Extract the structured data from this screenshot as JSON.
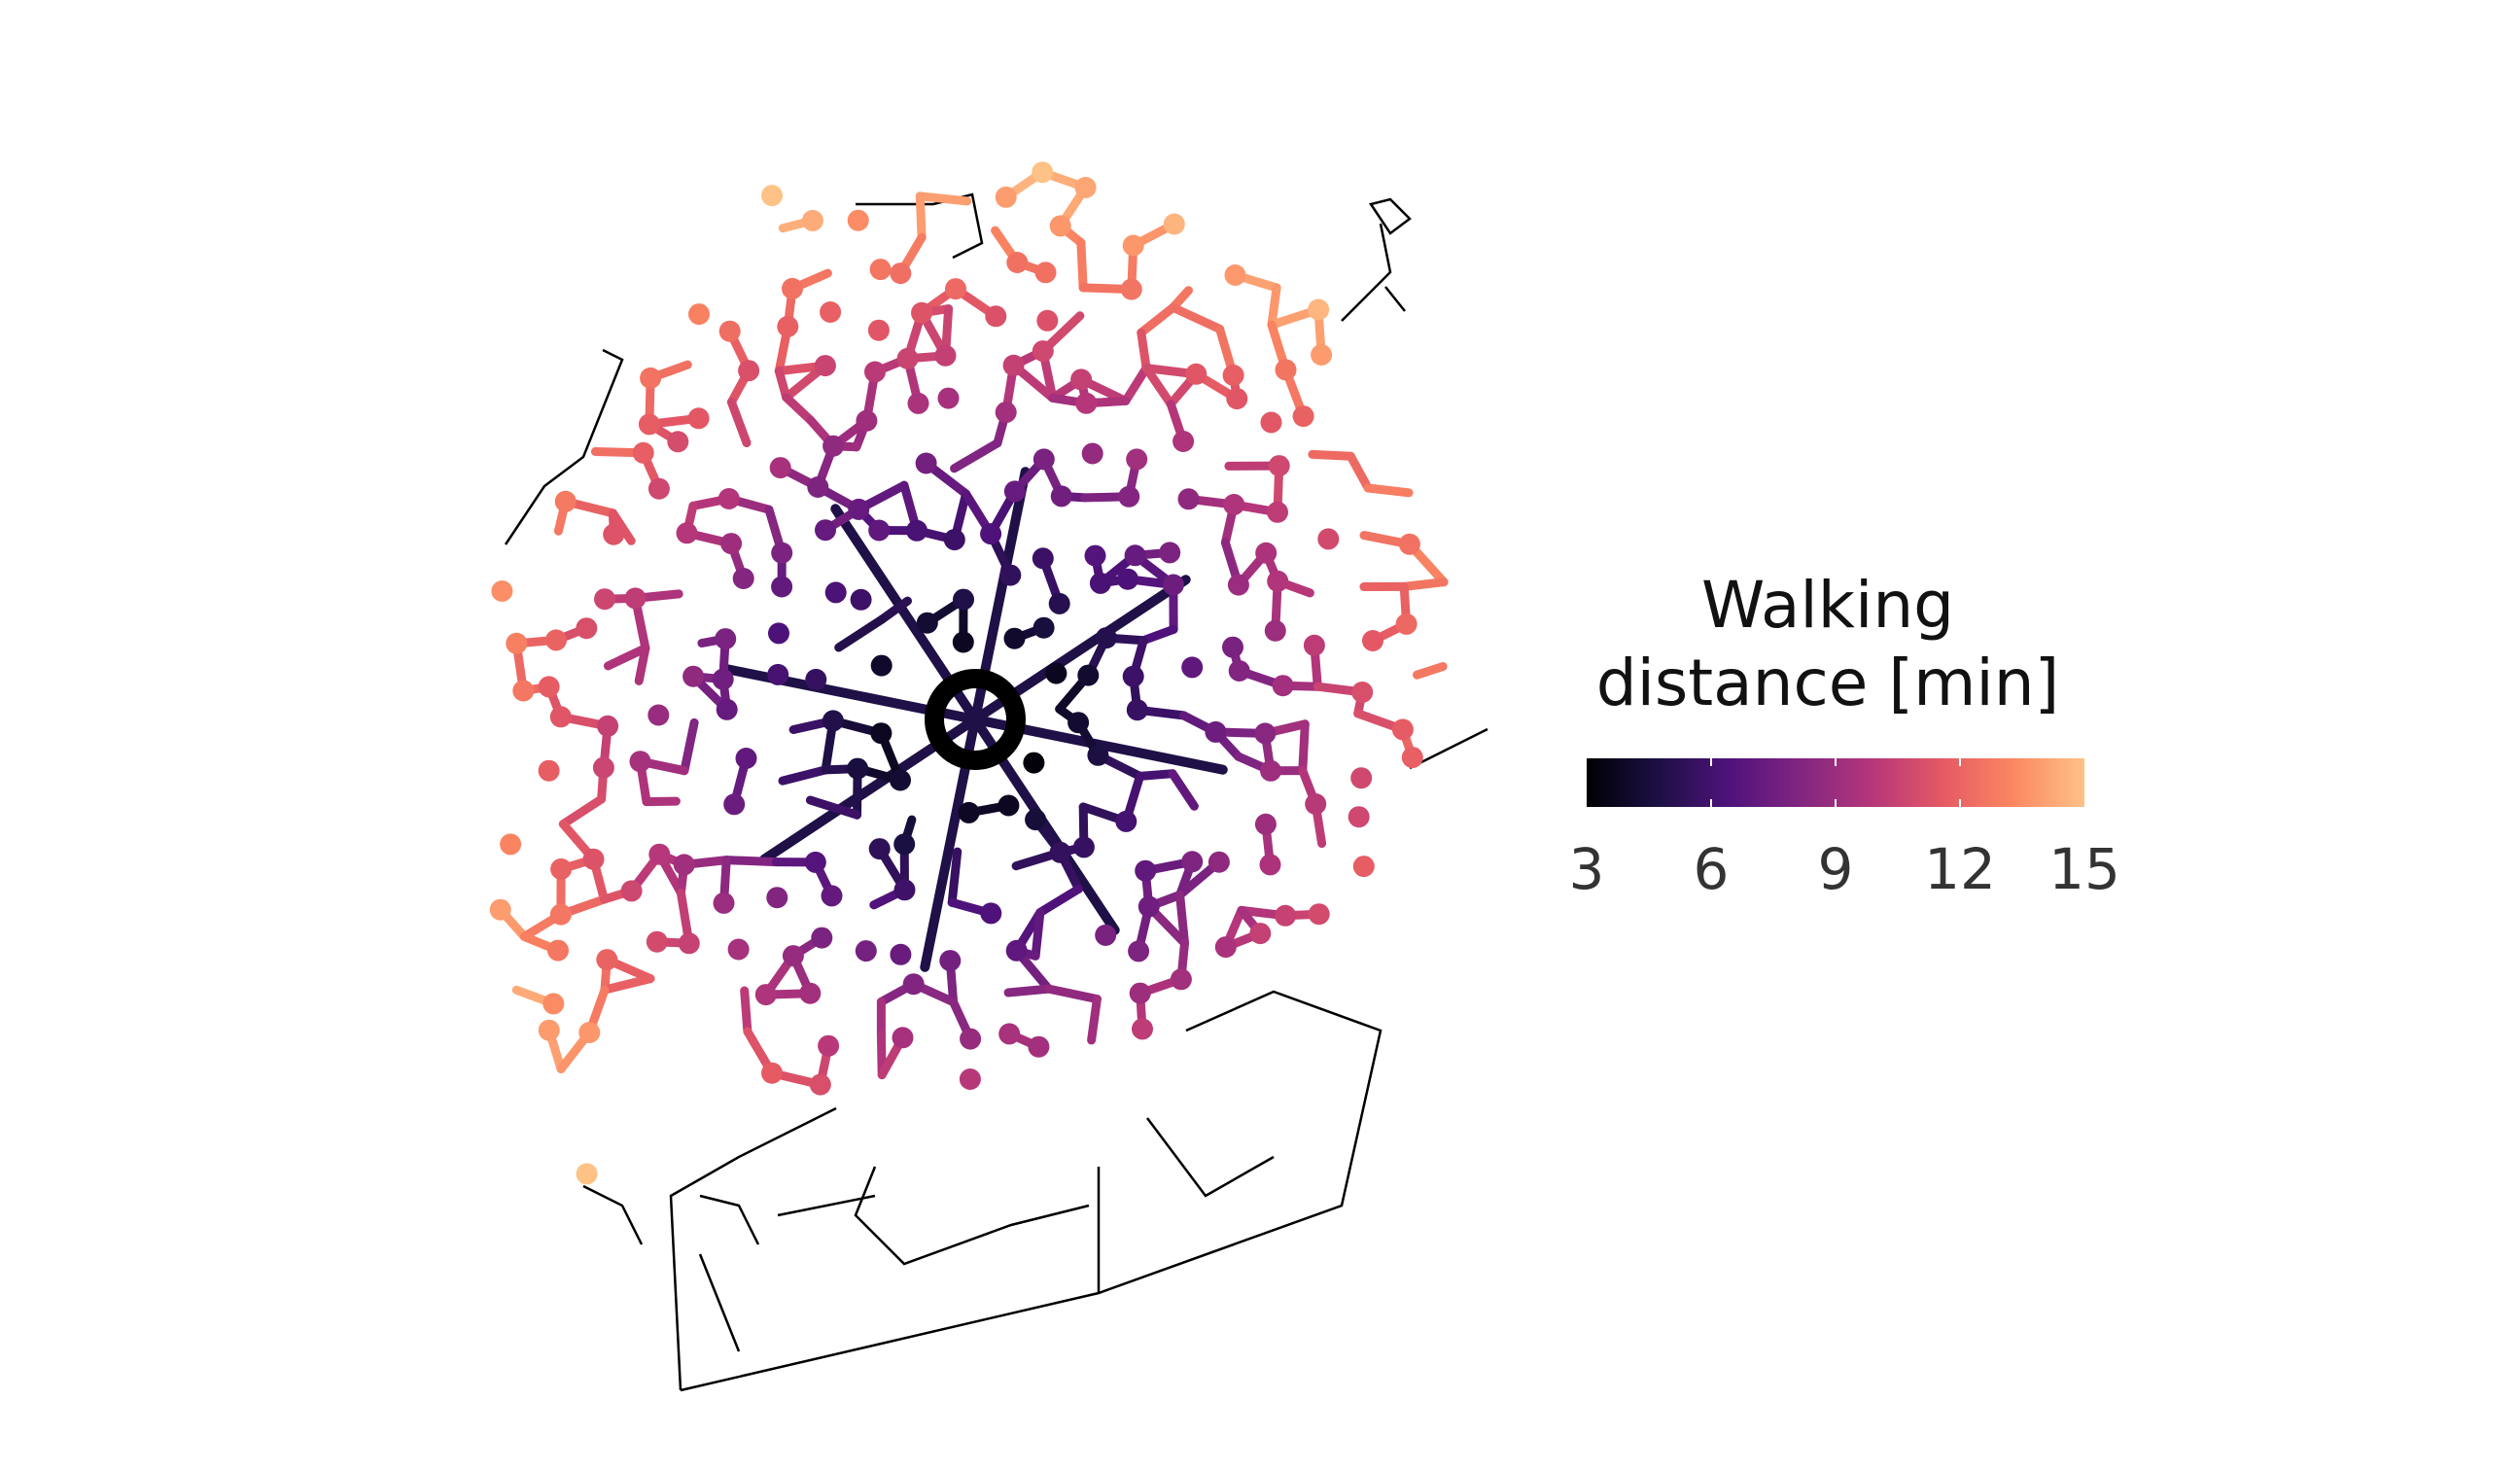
{
  "legend": {
    "title_line1": "Walking",
    "title_line2": "distance [min]",
    "ticks": [
      "3",
      "6",
      "9",
      "12",
      "15"
    ],
    "range": [
      3,
      15
    ],
    "colormap": "magma",
    "colors": [
      "#000004",
      "#1c1044",
      "#4f127b",
      "#812581",
      "#b5367a",
      "#e55964",
      "#fb8761",
      "#fec287"
    ]
  },
  "map": {
    "background": "#ffffff",
    "base_network_color": "#000000",
    "origin_marker_color": "#000000"
  }
}
